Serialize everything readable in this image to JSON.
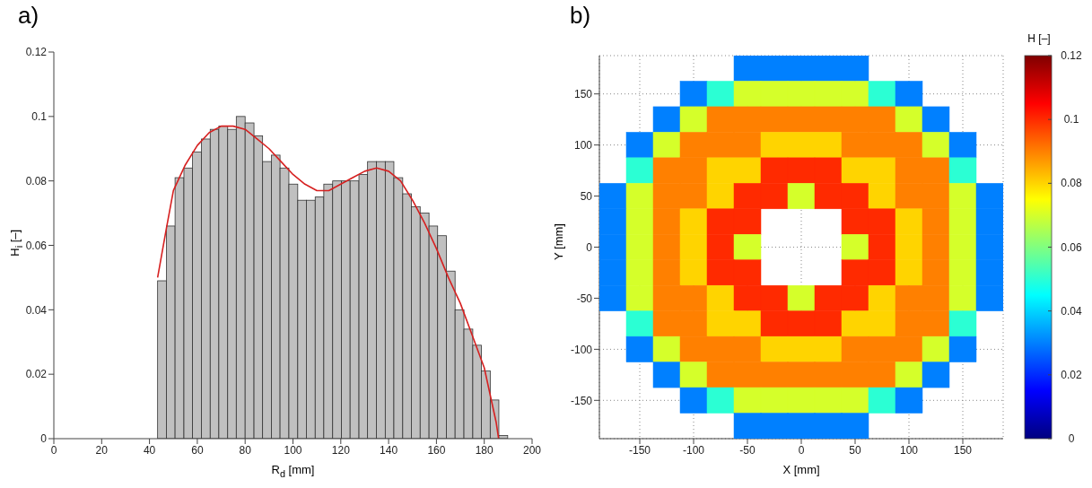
{
  "chart_data": [
    {
      "type": "histogram",
      "title": "a)",
      "xlabel": "R$_{d}$ [mm]",
      "ylabel": "H$_{i}$ [–]",
      "xlim": [
        0,
        200
      ],
      "ylim": [
        0,
        0.12
      ],
      "xticks": [
        0,
        20,
        40,
        60,
        80,
        100,
        120,
        140,
        160,
        180,
        200
      ],
      "yticks": [
        0,
        0.02,
        0.04,
        0.06,
        0.08,
        0.1,
        0.12
      ],
      "series": [
        {
          "type": "histogram",
          "color": "#c0c0c0",
          "bins": [
            43.4,
            47.1,
            50.7,
            54.4,
            58.0,
            61.7,
            65.4,
            69.0,
            72.7,
            76.3,
            80.0,
            83.7,
            87.3,
            91.0,
            94.6,
            98.3,
            102.0,
            105.6,
            109.3,
            112.9,
            116.6,
            120.3,
            123.9,
            127.6,
            131.2,
            134.9,
            138.6,
            142.2,
            145.9,
            149.5,
            153.2,
            156.9,
            160.5,
            164.2,
            167.8,
            171.5,
            175.2,
            178.8,
            182.5,
            186.1,
            189.8
          ],
          "values": [
            0.049,
            0.066,
            0.081,
            0.084,
            0.089,
            0.093,
            0.096,
            0.097,
            0.096,
            0.1,
            0.098,
            0.094,
            0.086,
            0.088,
            0.084,
            0.079,
            0.074,
            0.074,
            0.075,
            0.079,
            0.08,
            0.08,
            0.08,
            0.082,
            0.086,
            0.086,
            0.086,
            0.081,
            0.076,
            0.072,
            0.07,
            0.066,
            0.063,
            0.052,
            0.04,
            0.034,
            0.029,
            0.021,
            0.012,
            0.001
          ]
        },
        {
          "type": "line",
          "color": "#d62020",
          "x": [
            43.4,
            47,
            50,
            55,
            60,
            65,
            70,
            75,
            80,
            85,
            90,
            95,
            100,
            105,
            110,
            115,
            120,
            125,
            130,
            135,
            140,
            145,
            150,
            155,
            160,
            165,
            170,
            175,
            180,
            185,
            186
          ],
          "values": [
            0.05,
            0.065,
            0.077,
            0.085,
            0.091,
            0.095,
            0.097,
            0.097,
            0.096,
            0.093,
            0.09,
            0.086,
            0.082,
            0.079,
            0.077,
            0.077,
            0.079,
            0.081,
            0.083,
            0.084,
            0.083,
            0.08,
            0.074,
            0.067,
            0.059,
            0.05,
            0.042,
            0.032,
            0.022,
            0.005,
            0
          ]
        }
      ]
    },
    {
      "type": "heatmap",
      "title": "b)",
      "xlabel": "X [mm]",
      "ylabel": "Y [mm]",
      "clabel": "H [–]",
      "grid": true,
      "categories": [
        null,
        "-150",
        null,
        "-100",
        null,
        "-50",
        null,
        "0",
        null,
        "50",
        null,
        "100",
        null,
        "150",
        null
      ],
      "y_categories": [
        null,
        "150",
        null,
        "100",
        null,
        "50",
        null,
        "0",
        null,
        "-50",
        null,
        "-100",
        null,
        "-150",
        null
      ],
      "clim": [
        0,
        0.12
      ],
      "cticks": [
        0,
        0.02,
        0.04,
        0.06,
        0.08,
        0.1,
        0.12
      ],
      "cells": [
        [
          null,
          null,
          null,
          null,
          null,
          0.03,
          0.03,
          0.03,
          0.03,
          0.03,
          null,
          null,
          null,
          null,
          null
        ],
        [
          null,
          null,
          null,
          0.03,
          0.05,
          0.07,
          0.07,
          0.07,
          0.07,
          0.07,
          0.05,
          0.03,
          null,
          null,
          null
        ],
        [
          null,
          null,
          0.03,
          0.07,
          0.09,
          0.09,
          0.09,
          0.09,
          0.09,
          0.09,
          0.09,
          0.07,
          0.03,
          null,
          null
        ],
        [
          null,
          0.03,
          0.07,
          0.09,
          0.09,
          0.09,
          0.08,
          0.08,
          0.08,
          0.09,
          0.09,
          0.09,
          0.07,
          0.03,
          null
        ],
        [
          null,
          0.05,
          0.09,
          0.09,
          0.08,
          0.08,
          0.1,
          0.1,
          0.1,
          0.08,
          0.08,
          0.09,
          0.09,
          0.05,
          null
        ],
        [
          0.03,
          0.07,
          0.09,
          0.09,
          0.08,
          0.1,
          0.1,
          0.07,
          0.1,
          0.1,
          0.08,
          0.09,
          0.09,
          0.07,
          0.03
        ],
        [
          0.03,
          0.07,
          0.09,
          0.08,
          0.1,
          0.1,
          null,
          null,
          null,
          0.1,
          0.1,
          0.08,
          0.09,
          0.07,
          0.03
        ],
        [
          0.03,
          0.07,
          0.09,
          0.08,
          0.1,
          0.07,
          null,
          null,
          null,
          0.07,
          0.1,
          0.08,
          0.09,
          0.07,
          0.03
        ],
        [
          0.03,
          0.07,
          0.09,
          0.08,
          0.1,
          0.1,
          null,
          null,
          null,
          0.1,
          0.1,
          0.08,
          0.09,
          0.07,
          0.03
        ],
        [
          0.03,
          0.07,
          0.09,
          0.09,
          0.08,
          0.1,
          0.1,
          0.07,
          0.1,
          0.1,
          0.08,
          0.09,
          0.09,
          0.07,
          0.03
        ],
        [
          null,
          0.05,
          0.09,
          0.09,
          0.08,
          0.08,
          0.1,
          0.1,
          0.1,
          0.08,
          0.08,
          0.09,
          0.09,
          0.05,
          null
        ],
        [
          null,
          0.03,
          0.07,
          0.09,
          0.09,
          0.09,
          0.08,
          0.08,
          0.08,
          0.09,
          0.09,
          0.09,
          0.07,
          0.03,
          null
        ],
        [
          null,
          null,
          0.03,
          0.07,
          0.09,
          0.09,
          0.09,
          0.09,
          0.09,
          0.09,
          0.09,
          0.07,
          0.03,
          null,
          null
        ],
        [
          null,
          null,
          null,
          0.03,
          0.05,
          0.07,
          0.07,
          0.07,
          0.07,
          0.07,
          0.05,
          0.03,
          null,
          null,
          null
        ],
        [
          null,
          null,
          null,
          null,
          null,
          0.03,
          0.03,
          0.03,
          0.03,
          0.03,
          null,
          null,
          null,
          null,
          null
        ]
      ]
    }
  ]
}
